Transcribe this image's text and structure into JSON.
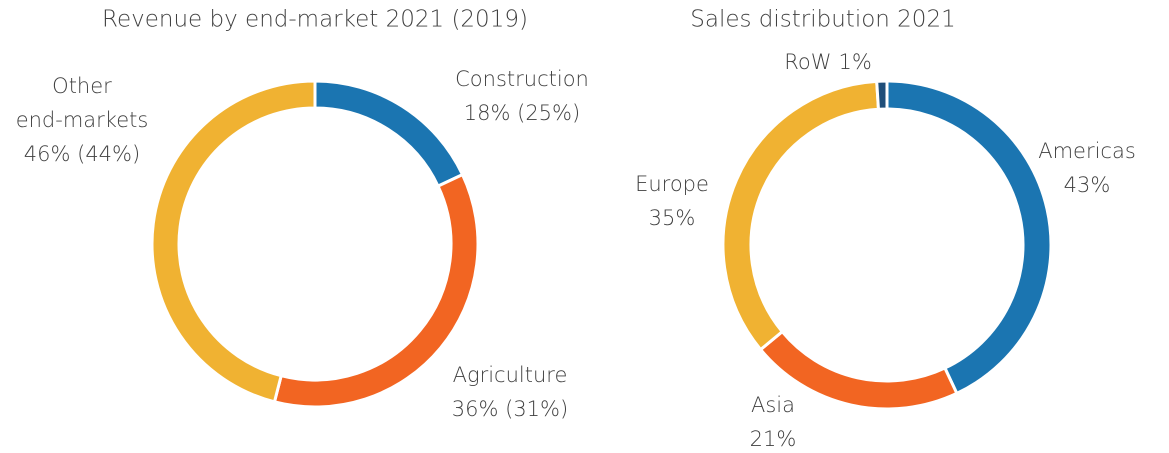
{
  "chart_data": [
    {
      "type": "donut",
      "title": "Revenue by end-market 2021 (2019)",
      "categories": [
        "Construction",
        "Agriculture",
        "Other end-markets"
      ],
      "values": [
        18,
        36,
        46
      ],
      "value_labels": [
        "18% (25%)",
        "36% (31%)",
        "46% (44%)"
      ],
      "colors": [
        "#1b75b1",
        "#f26522",
        "#f0b232"
      ]
    },
    {
      "type": "donut",
      "title": "Sales distribution 2021",
      "categories": [
        "Americas",
        "Asia",
        "Europe",
        "RoW"
      ],
      "values": [
        43,
        21,
        35,
        1
      ],
      "value_labels": [
        "43%",
        "21%",
        "35%",
        "1%"
      ],
      "colors": [
        "#1b75b1",
        "#f26522",
        "#f0b232",
        "#1f4e79"
      ]
    }
  ]
}
